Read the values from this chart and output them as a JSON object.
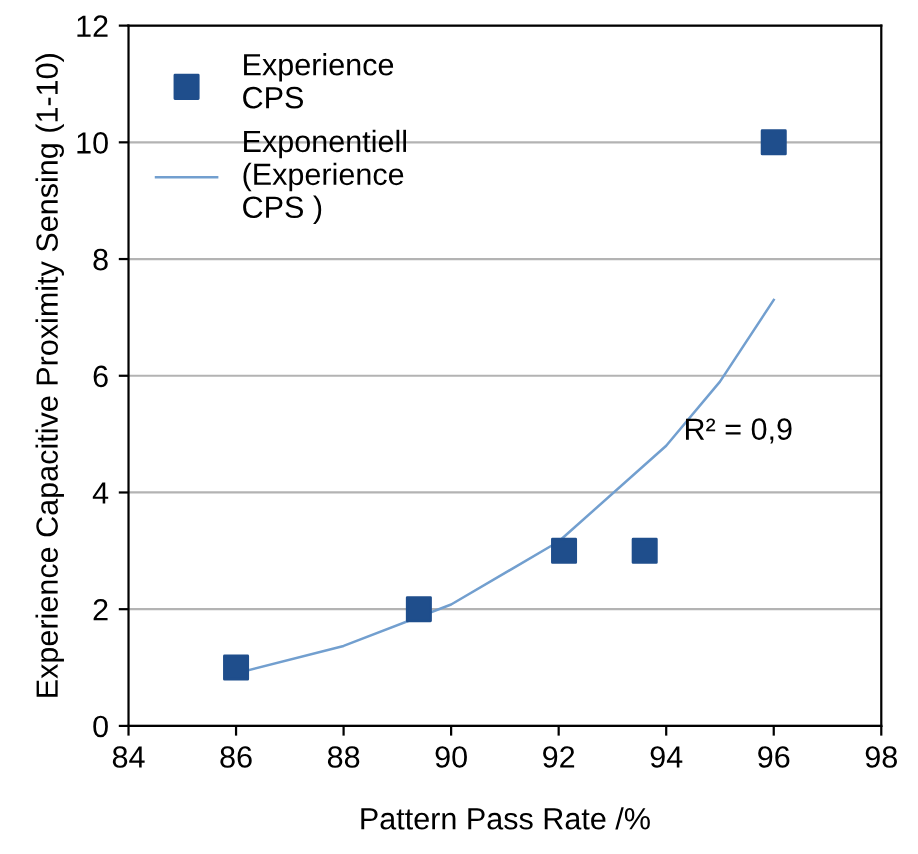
{
  "chart_data": {
    "type": "scatter",
    "xlabel": "Pattern Pass Rate /%",
    "ylabel": "Experience Capacitive Proximity Sensing (1-10)",
    "xlim": [
      84,
      98
    ],
    "xticks": [
      84,
      86,
      88,
      90,
      92,
      94,
      96,
      98
    ],
    "ylim": [
      0,
      12
    ],
    "yticks": [
      0,
      2,
      4,
      6,
      8,
      10,
      12
    ],
    "grid": "y",
    "legend": "top left",
    "marker": "square",
    "series": [
      {
        "name": "Experience\nCPS",
        "color": "#1f4e8c",
        "x": [
          86,
          89.4,
          92.1,
          93.6,
          96
        ],
        "values": [
          1,
          2,
          3,
          3,
          10
        ]
      },
      {
        "name": "Exponentiell\n(Experience\nCPS )",
        "type": "line",
        "color": "#729fcf",
        "marker": "none",
        "x": [
          86,
          88,
          90,
          92,
          94,
          95,
          96
        ],
        "values": [
          0.9,
          1.37,
          2.08,
          3.16,
          4.8,
          5.9,
          7.3
        ]
      }
    ],
    "annotations": [
      "R² = 0,9"
    ]
  }
}
